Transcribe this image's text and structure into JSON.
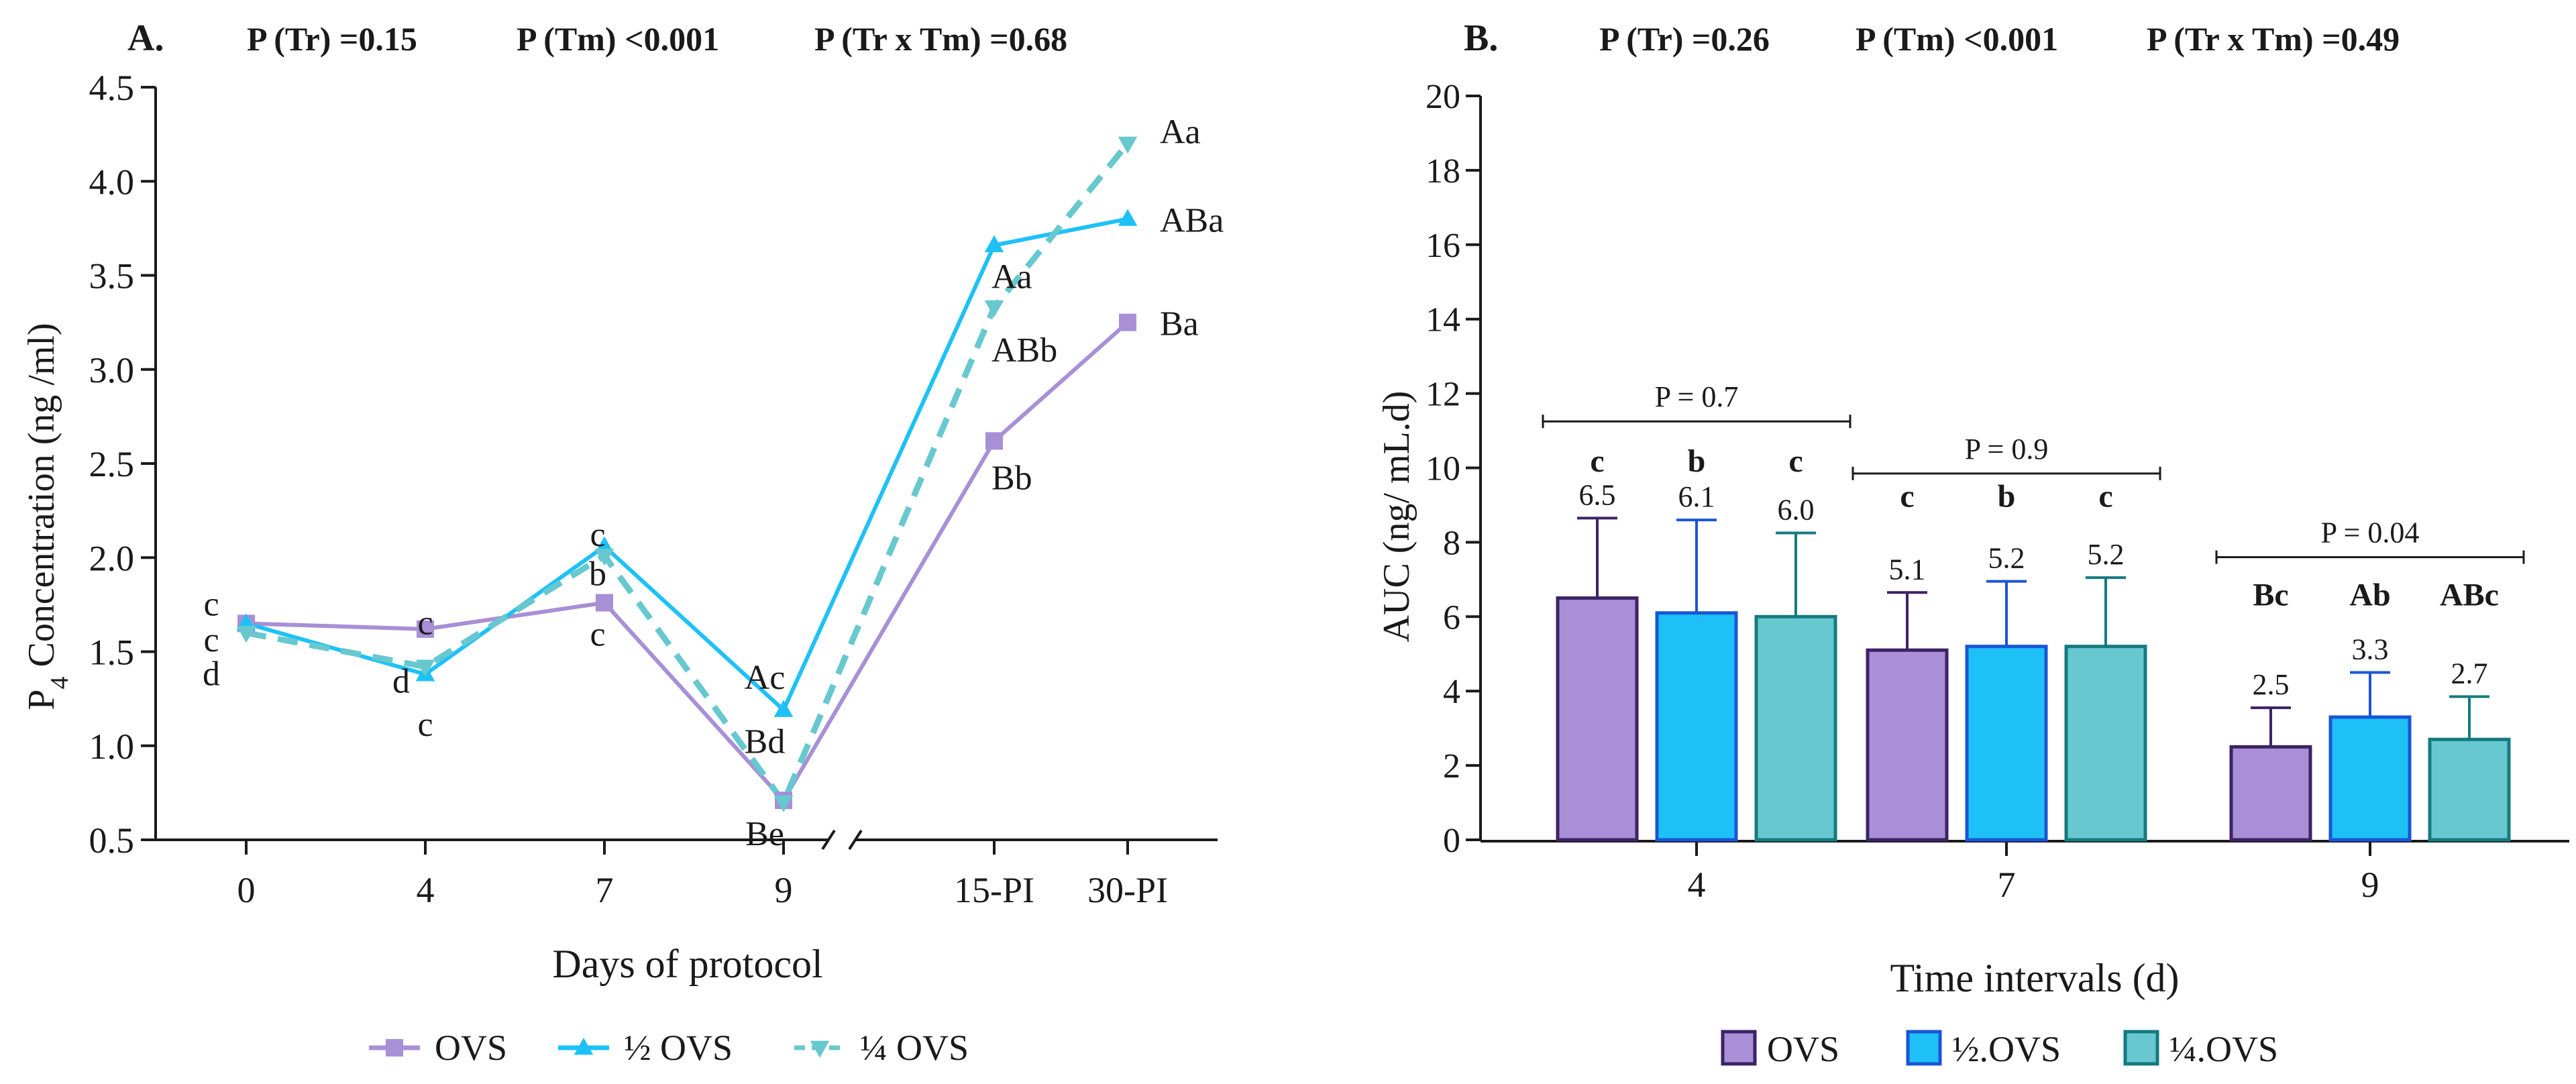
{
  "colors": {
    "ovs": "#a88fd6",
    "half": "#1ec1f7",
    "quarter": "#67c8cf",
    "ovs_edge": "#3d2366",
    "half_edge": "#1a55d6",
    "quarter_edge": "#157a80",
    "axis": "#1a1a1a"
  },
  "chart_data": [
    {
      "type": "line",
      "panel_label": "A.",
      "stats": [
        "P (Tr) =0.15",
        "P (Tm) <0.001",
        "P (Tr x Tm) =0.68"
      ],
      "ylabel_prefix": "P",
      "ylabel_sub": "4",
      "ylabel_rest": " Concentration (ng /ml)",
      "xlabel": "Days of protocol",
      "ylim": [
        0.5,
        4.5
      ],
      "yticks": [
        "0.5",
        "1.0",
        "1.5",
        "2.0",
        "2.5",
        "3.0",
        "3.5",
        "4.0",
        "4.5"
      ],
      "categories": [
        "0",
        "4",
        "7",
        "9",
        "15-PI",
        "30-PI"
      ],
      "axis_break": "after 9",
      "series": [
        {
          "name": "OVS",
          "marker": "square",
          "style": "solid",
          "values": [
            1.65,
            1.62,
            1.76,
            0.71,
            2.62,
            3.25
          ]
        },
        {
          "name": "½ OVS",
          "marker": "triangle-up",
          "style": "solid",
          "values": [
            1.65,
            1.38,
            2.06,
            1.19,
            3.66,
            3.8
          ]
        },
        {
          "name": "¼ OVS",
          "marker": "triangle-down",
          "style": "dashed",
          "values": [
            1.6,
            1.42,
            2.01,
            0.7,
            3.33,
            4.2
          ]
        }
      ],
      "point_labels": [
        {
          "text": "c",
          "cat": 0,
          "y": 1.76
        },
        {
          "text": "c",
          "cat": 0,
          "y": 1.57
        },
        {
          "text": "d",
          "cat": 0,
          "y": 1.39
        },
        {
          "text": "c",
          "cat": 1,
          "y": 1.66
        },
        {
          "text": "d",
          "cat": 1,
          "y": 1.35
        },
        {
          "text": "c",
          "cat": 1,
          "y": 1.12
        },
        {
          "text": "c",
          "cat": 2,
          "y": 2.13
        },
        {
          "text": "b",
          "cat": 2,
          "y": 1.92
        },
        {
          "text": "c",
          "cat": 2,
          "y": 1.6
        },
        {
          "text": "Ac",
          "cat": 3,
          "y": 1.37
        },
        {
          "text": "Bd",
          "cat": 3,
          "y": 1.03
        },
        {
          "text": "Be",
          "cat": 3,
          "y": 0.54
        },
        {
          "text": "Aa",
          "cat": 4,
          "y": 3.5
        },
        {
          "text": "ABb",
          "cat": 4,
          "y": 3.11
        },
        {
          "text": "Bb",
          "cat": 4,
          "y": 2.43
        },
        {
          "text": "Aa",
          "cat": 5,
          "y": 4.27
        },
        {
          "text": "ABa",
          "cat": 5,
          "y": 3.8
        },
        {
          "text": "Ba",
          "cat": 5,
          "y": 3.25
        }
      ],
      "legend": [
        "OVS",
        "½ OVS",
        "¼ OVS"
      ]
    },
    {
      "type": "bar",
      "panel_label": "B.",
      "stats": [
        "P (Tr) =0.26",
        "P (Tm) <0.001",
        "P (Tr x Tm) =0.49"
      ],
      "ylabel": "AUC (ng/ mL.d)",
      "xlabel": "Time intervals (d)",
      "ylim": [
        0,
        20
      ],
      "yticks": [
        "0",
        "2",
        "4",
        "6",
        "8",
        "10",
        "12",
        "14",
        "16",
        "18",
        "20"
      ],
      "categories": [
        "4",
        "7",
        "9"
      ],
      "series": [
        {
          "name": "OVS",
          "values": [
            6.5,
            5.1,
            2.5
          ],
          "errors": [
            2.15,
            1.55,
            1.05
          ],
          "value_labels": [
            "6.5",
            "5.1",
            "2.5"
          ],
          "letters": [
            "c",
            "c",
            "Bc"
          ]
        },
        {
          "name": "½.OVS",
          "values": [
            6.1,
            5.2,
            3.3
          ],
          "errors": [
            2.5,
            1.75,
            1.2
          ],
          "value_labels": [
            "6.1",
            "5.2",
            "3.3"
          ],
          "letters": [
            "b",
            "b",
            "Ab"
          ]
        },
        {
          "name": "¼.OVS",
          "values": [
            6.0,
            5.2,
            2.7
          ],
          "errors": [
            2.25,
            1.85,
            1.15
          ],
          "value_labels": [
            "6.0",
            "5.2",
            "2.7"
          ],
          "letters": [
            "c",
            "c",
            "ABc"
          ]
        }
      ],
      "group_pvalues": [
        "P = 0.7",
        "P = 0.9",
        "P = 0.04"
      ],
      "legend": [
        "OVS",
        "½.OVS",
        "¼.OVS"
      ]
    }
  ]
}
